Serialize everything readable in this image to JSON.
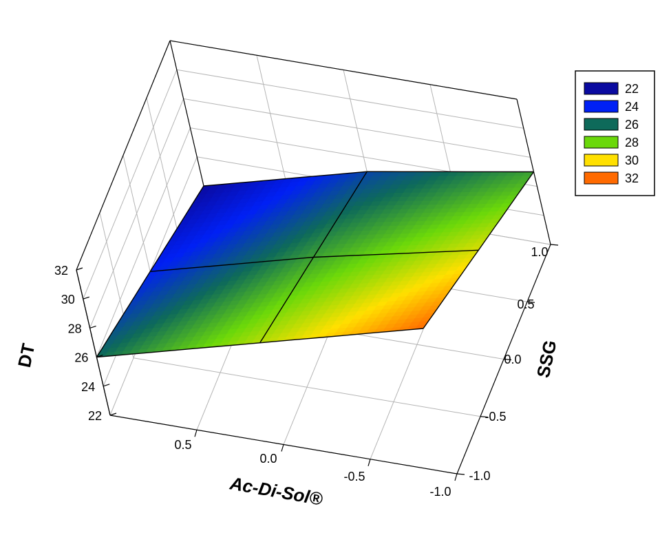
{
  "chart_data": {
    "type": "surface3d",
    "title": "",
    "xlabel": "Ac-Di-Sol®",
    "ylabel": "SSG",
    "zlabel": "DT",
    "xlim": [
      -1.0,
      1.0
    ],
    "ylim": [
      -1.0,
      1.0
    ],
    "zlim": [
      22,
      32
    ],
    "x_ticks": [
      "-1.0",
      "-0.5",
      "0.0",
      "0.5"
    ],
    "y_ticks": [
      "-1.0",
      "-0.5",
      "0.0",
      "0.5",
      "1.0"
    ],
    "z_ticks": [
      "22",
      "24",
      "26",
      "28",
      "30",
      "32"
    ],
    "surface_grid": {
      "x": [
        -1.0,
        0.0,
        1.0
      ],
      "y": [
        -1.0,
        0.0,
        1.0
      ],
      "z": [
        [
          32.0,
          29.5,
          27.0
        ],
        [
          29.0,
          27.0,
          25.0
        ],
        [
          26.0,
          24.0,
          22.0
        ]
      ]
    },
    "legend": {
      "position": "right",
      "entries": [
        {
          "label": "22",
          "color": "#0a0aa0"
        },
        {
          "label": "24",
          "color": "#0020f5"
        },
        {
          "label": "26",
          "color": "#0e6a5a"
        },
        {
          "label": "28",
          "color": "#6ad80a"
        },
        {
          "label": "30",
          "color": "#ffe000"
        },
        {
          "label": "32",
          "color": "#ff6a00"
        }
      ]
    },
    "grid": true
  }
}
